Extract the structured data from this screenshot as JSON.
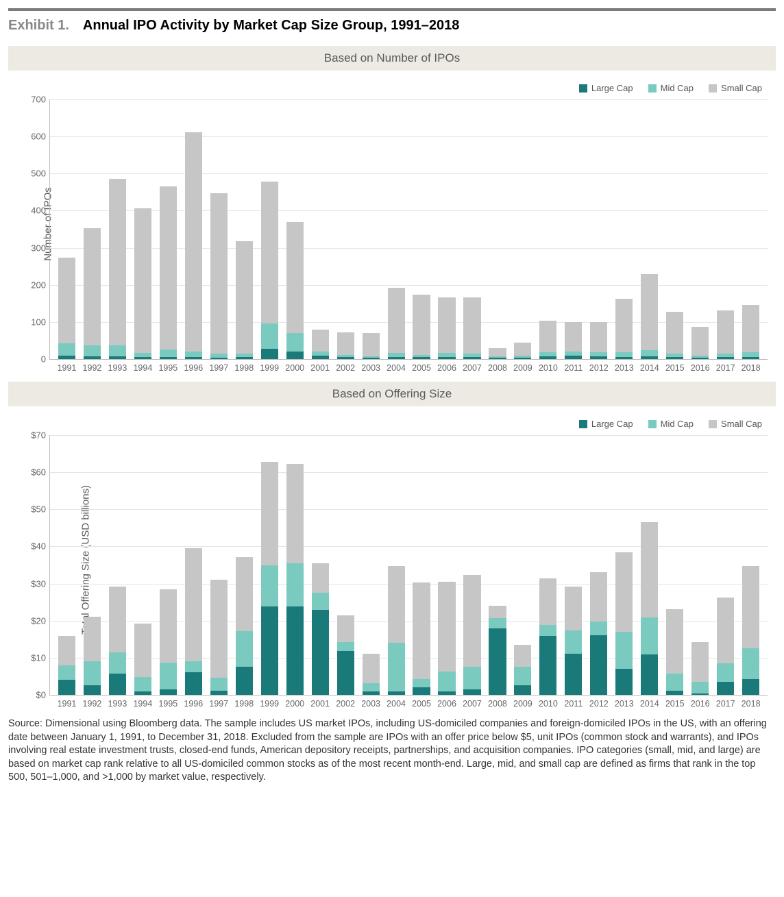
{
  "colors": {
    "large_cap": "#1a7a7a",
    "mid_cap": "#7bcac0",
    "small_cap": "#c6c6c6",
    "grid": "#e5e5e5",
    "axis": "#bbbbbb",
    "subtitle_bg": "#eceae3",
    "top_rule": "#7a7a7a"
  },
  "header": {
    "exhibit_label": "Exhibit 1.",
    "title": "Annual IPO Activity by Market Cap Size Group, 1991–2018"
  },
  "legend": {
    "large": "Large Cap",
    "mid": "Mid Cap",
    "small": "Small Cap"
  },
  "years": [
    "1991",
    "1992",
    "1993",
    "1994",
    "1995",
    "1996",
    "1997",
    "1998",
    "1999",
    "2000",
    "2001",
    "2002",
    "2003",
    "2004",
    "2005",
    "2006",
    "2007",
    "2008",
    "2009",
    "2010",
    "2011",
    "2012",
    "2013",
    "2014",
    "2015",
    "2016",
    "2017",
    "2018"
  ],
  "chart1": {
    "subtitle": "Based on Number of IPOs",
    "y_label": "Number of IPOs",
    "ylim": [
      0,
      700
    ],
    "ytick_step": 100,
    "y_tick_format": "int",
    "series": {
      "large": [
        10,
        8,
        8,
        5,
        5,
        6,
        4,
        5,
        28,
        20,
        10,
        5,
        3,
        5,
        5,
        6,
        5,
        3,
        4,
        8,
        10,
        8,
        6,
        8,
        5,
        3,
        5,
        6
      ],
      "mid": [
        32,
        28,
        28,
        12,
        20,
        15,
        10,
        10,
        68,
        50,
        10,
        6,
        5,
        12,
        6,
        10,
        10,
        5,
        6,
        10,
        10,
        10,
        12,
        16,
        10,
        6,
        10,
        12
      ],
      "small": [
        230,
        315,
        448,
        388,
        440,
        588,
        432,
        302,
        382,
        298,
        60,
        60,
        62,
        175,
        162,
        150,
        150,
        22,
        35,
        85,
        80,
        82,
        145,
        205,
        113,
        78,
        115,
        128
      ]
    }
  },
  "chart2": {
    "subtitle": "Based on Offering Size",
    "y_label": "Total Offering Size (USD billions)",
    "ylim": [
      0,
      70
    ],
    "ytick_step": 10,
    "y_tick_format": "dollar",
    "series": {
      "large": [
        4.0,
        2.5,
        5.8,
        1.0,
        1.5,
        6.0,
        1.2,
        7.6,
        23.8,
        23.8,
        22.8,
        11.8,
        1.0,
        1.0,
        2.0,
        1.0,
        1.5,
        17.8,
        2.5,
        15.8,
        11.0,
        16.0,
        7.0,
        10.8,
        1.2,
        0.3,
        3.5,
        4.2
      ],
      "mid": [
        4.0,
        6.5,
        5.6,
        3.8,
        7.2,
        3.0,
        3.4,
        9.6,
        11.0,
        11.6,
        4.6,
        2.4,
        2.2,
        13.0,
        2.2,
        5.2,
        6.0,
        2.8,
        5.0,
        3.0,
        6.4,
        3.8,
        10.0,
        10.0,
        4.6,
        3.2,
        5.0,
        8.4
      ],
      "small": [
        7.8,
        12.0,
        17.8,
        14.4,
        19.6,
        30.4,
        26.4,
        19.8,
        27.8,
        26.6,
        8.0,
        7.2,
        7.8,
        20.6,
        26.0,
        24.2,
        24.8,
        3.4,
        6.0,
        12.6,
        11.8,
        13.2,
        21.4,
        25.6,
        17.2,
        10.6,
        17.6,
        22.0
      ]
    }
  },
  "source_note": "Source: Dimensional using Bloomberg data. The sample includes US market IPOs, including US-domiciled companies and foreign-domiciled IPOs in the US, with an offering date between January 1, 1991, to December 31, 2018. Excluded from the sample are IPOs with an offer price below $5, unit IPOs (common stock and warrants), and IPOs involving real estate investment trusts, closed-end funds, American depository receipts, partnerships, and acquisition companies. IPO categories (small, mid, and large) are based on market cap rank relative to all US-domiciled common stocks as of the most recent month-end. Large, mid, and small cap are defined as firms that rank in the top 500, 501–1,000, and >1,000 by market value, respectively."
}
